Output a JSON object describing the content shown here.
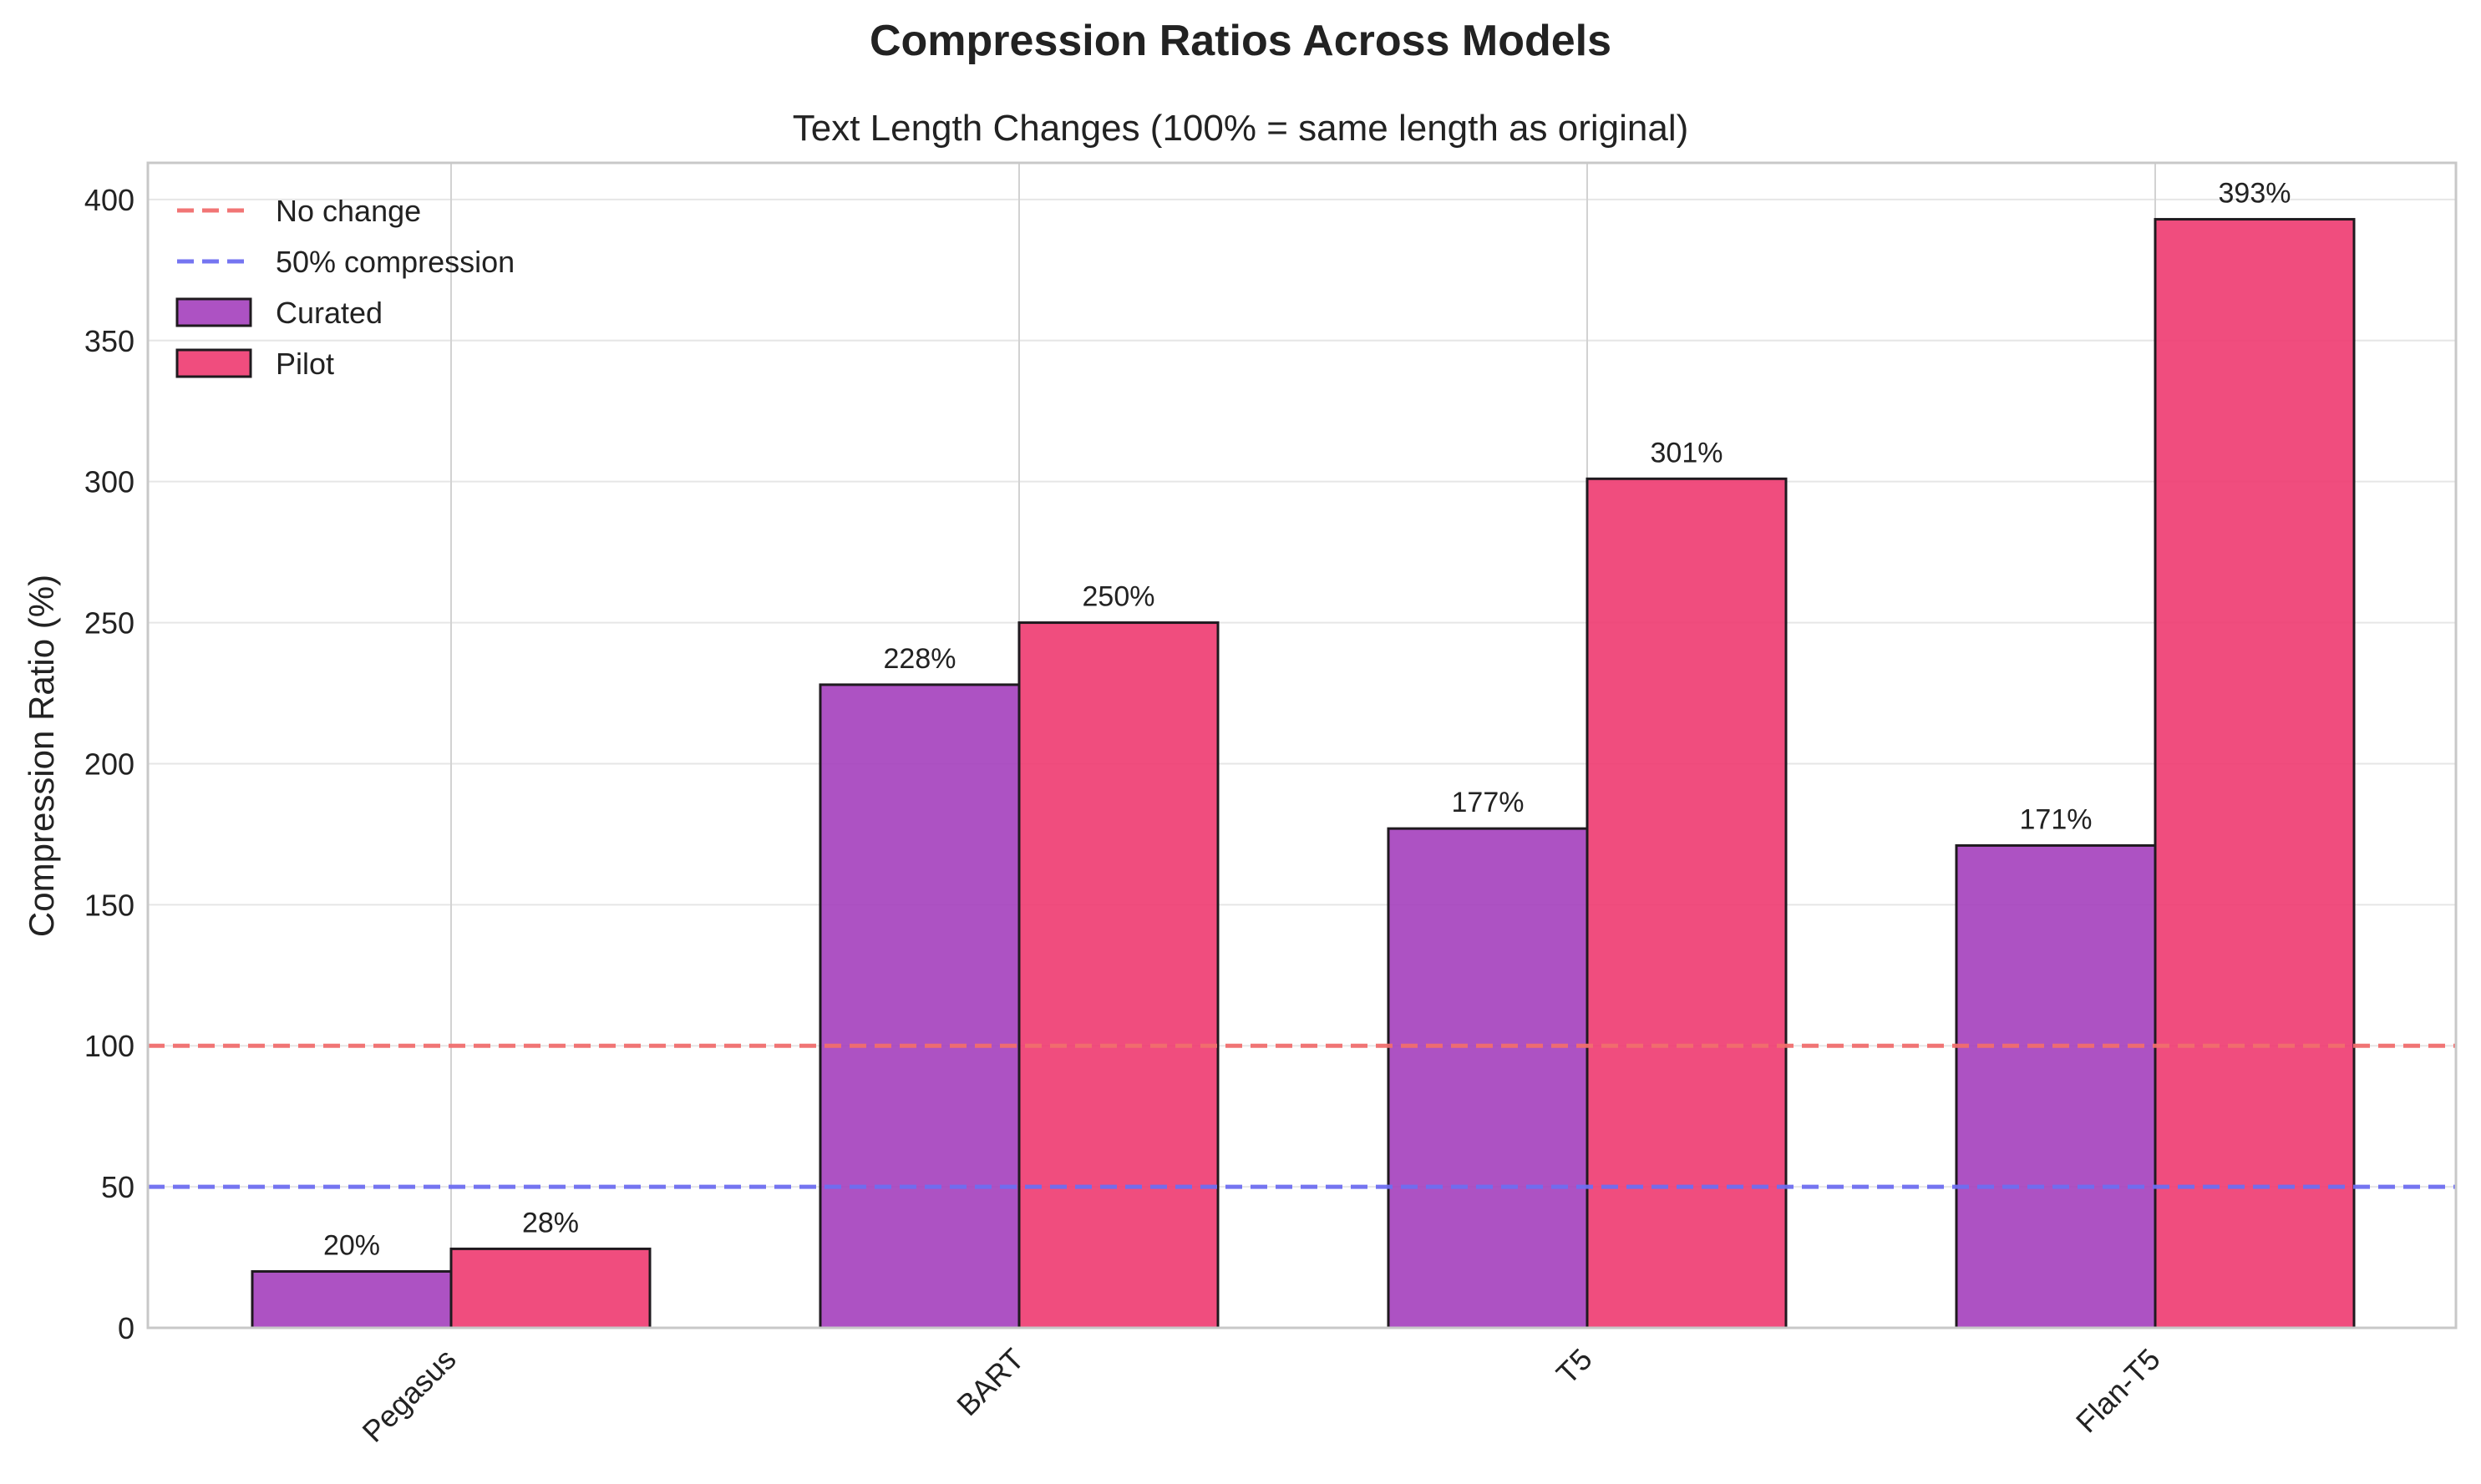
{
  "chart_data": {
    "type": "bar",
    "title": "Compression Ratios Across Models",
    "subtitle": "Text Length Changes (100% = same length as original)",
    "xlabel": "",
    "ylabel": "Compression Ratio (%)",
    "ylim": [
      0,
      413
    ],
    "yticks": [
      0,
      50,
      100,
      150,
      200,
      250,
      300,
      350,
      400
    ],
    "categories": [
      "Pegasus",
      "BART",
      "T5",
      "Flan-T5"
    ],
    "series": [
      {
        "name": "Curated",
        "values": [
          20,
          228,
          177,
          171
        ],
        "labels": [
          "20%",
          "228%",
          "177%",
          "171%"
        ],
        "color": "#a43fbc"
      },
      {
        "name": "Pilot",
        "values": [
          28,
          250,
          301,
          393
        ],
        "labels": [
          "28%",
          "250%",
          "301%",
          "393%"
        ],
        "color": "#ee3a70"
      }
    ],
    "reference_lines": [
      {
        "name": "No change",
        "value": 100,
        "color": "#f06e6e",
        "style": "dashed"
      },
      {
        "name": "50% compression",
        "value": 50,
        "color": "#6e6ef0",
        "style": "dashed"
      }
    ],
    "grid": true,
    "legend_position": "top-left"
  }
}
